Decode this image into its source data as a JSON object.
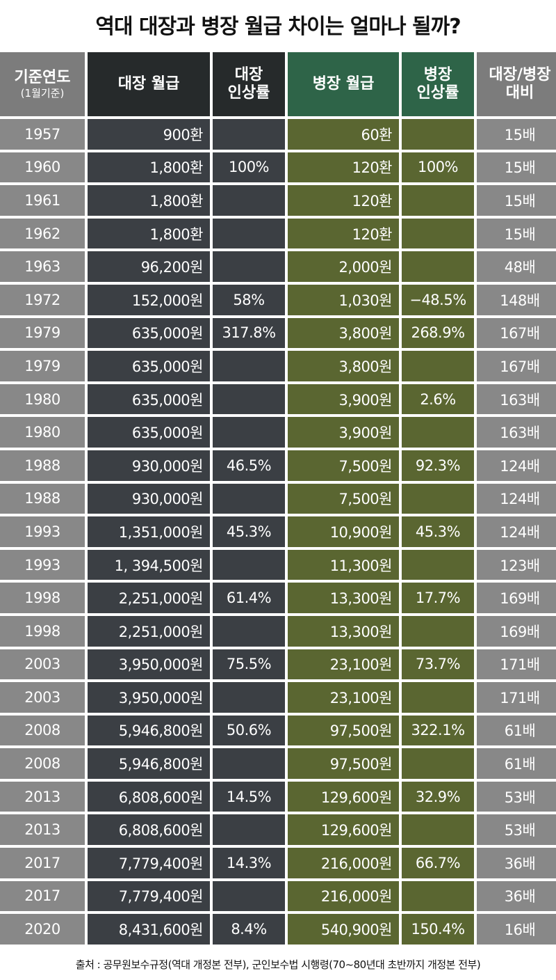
{
  "title": "역대 대장과 병장 월급 차이는 얼마나 될까?",
  "headers": {
    "year": "기준연도",
    "year_sub": "(1월기준)",
    "general_pay": "대장 월급",
    "general_raise_1": "대장",
    "general_raise_2": "인상률",
    "private_pay": "병장 월급",
    "private_raise_1": "병장",
    "private_raise_2": "인상률",
    "ratio_1": "대장/병장",
    "ratio_2": "대비"
  },
  "colors": {
    "year_col": "#888888",
    "general_col": "#3b3f44",
    "private_col": "#5a6631",
    "private_header": "#2e6448"
  },
  "rows": [
    {
      "year": "1957",
      "general": "900환",
      "general_raise": "",
      "private": "60환",
      "private_raise": "",
      "ratio": "15배"
    },
    {
      "year": "1960",
      "general": "1,800환",
      "general_raise": "100%",
      "private": "120환",
      "private_raise": "100%",
      "ratio": "15배"
    },
    {
      "year": "1961",
      "general": "1,800환",
      "general_raise": "",
      "private": "120환",
      "private_raise": "",
      "ratio": "15배"
    },
    {
      "year": "1962",
      "general": "1,800환",
      "general_raise": "",
      "private": "120환",
      "private_raise": "",
      "ratio": "15배"
    },
    {
      "year": "1963",
      "general": "96,200원",
      "general_raise": "",
      "private": "2,000원",
      "private_raise": "",
      "ratio": "48배"
    },
    {
      "year": "1972",
      "general": "152,000원",
      "general_raise": "58%",
      "private": "1,030원",
      "private_raise": "−48.5%",
      "ratio": "148배"
    },
    {
      "year": "1979",
      "general": "635,000원",
      "general_raise": "317.8%",
      "private": "3,800원",
      "private_raise": "268.9%",
      "ratio": "167배"
    },
    {
      "year": "1979",
      "general": "635,000원",
      "general_raise": "",
      "private": "3,800원",
      "private_raise": "",
      "ratio": "167배"
    },
    {
      "year": "1980",
      "general": "635,000원",
      "general_raise": "",
      "private": "3,900원",
      "private_raise": "2.6%",
      "ratio": "163배"
    },
    {
      "year": "1980",
      "general": "635,000원",
      "general_raise": "",
      "private": "3,900원",
      "private_raise": "",
      "ratio": "163배"
    },
    {
      "year": "1988",
      "general": "930,000원",
      "general_raise": "46.5%",
      "private": "7,500원",
      "private_raise": "92.3%",
      "ratio": "124배"
    },
    {
      "year": "1988",
      "general": "930,000원",
      "general_raise": "",
      "private": "7,500원",
      "private_raise": "",
      "ratio": "124배"
    },
    {
      "year": "1993",
      "general": "1,351,000원",
      "general_raise": "45.3%",
      "private": "10,900원",
      "private_raise": "45.3%",
      "ratio": "124배"
    },
    {
      "year": "1993",
      "general": "1, 394,500원",
      "general_raise": "",
      "private": "11,300원",
      "private_raise": "",
      "ratio": "123배"
    },
    {
      "year": "1998",
      "general": "2,251,000원",
      "general_raise": "61.4%",
      "private": "13,300원",
      "private_raise": "17.7%",
      "ratio": "169배"
    },
    {
      "year": "1998",
      "general": "2,251,000원",
      "general_raise": "",
      "private": "13,300원",
      "private_raise": "",
      "ratio": "169배"
    },
    {
      "year": "2003",
      "general": "3,950,000원",
      "general_raise": "75.5%",
      "private": "23,100원",
      "private_raise": "73.7%",
      "ratio": "171배"
    },
    {
      "year": "2003",
      "general": "3,950,000원",
      "general_raise": "",
      "private": "23,100원",
      "private_raise": "",
      "ratio": "171배"
    },
    {
      "year": "2008",
      "general": "5,946,800원",
      "general_raise": "50.6%",
      "private": "97,500원",
      "private_raise": "322.1%",
      "ratio": "61배"
    },
    {
      "year": "2008",
      "general": "5,946,800원",
      "general_raise": "",
      "private": "97,500원",
      "private_raise": "",
      "ratio": "61배"
    },
    {
      "year": "2013",
      "general": "6,808,600원",
      "general_raise": "14.5%",
      "private": "129,600원",
      "private_raise": "32.9%",
      "ratio": "53배"
    },
    {
      "year": "2013",
      "general": "6,808,600원",
      "general_raise": "",
      "private": "129,600원",
      "private_raise": "",
      "ratio": "53배"
    },
    {
      "year": "2017",
      "general": "7,779,400원",
      "general_raise": "14.3%",
      "private": "216,000원",
      "private_raise": "66.7%",
      "ratio": "36배"
    },
    {
      "year": "2017",
      "general": "7,779,400원",
      "general_raise": "",
      "private": "216,000원",
      "private_raise": "",
      "ratio": "36배"
    },
    {
      "year": "2020",
      "general": "8,431,600원",
      "general_raise": "8.4%",
      "private": "540,900원",
      "private_raise": "150.4%",
      "ratio": "16배"
    }
  ],
  "source": "출처 : 공무원보수규정(역대 개정본 전부), 군인보수법 시행령(70~80년대 초반까지 개정본 전부)"
}
